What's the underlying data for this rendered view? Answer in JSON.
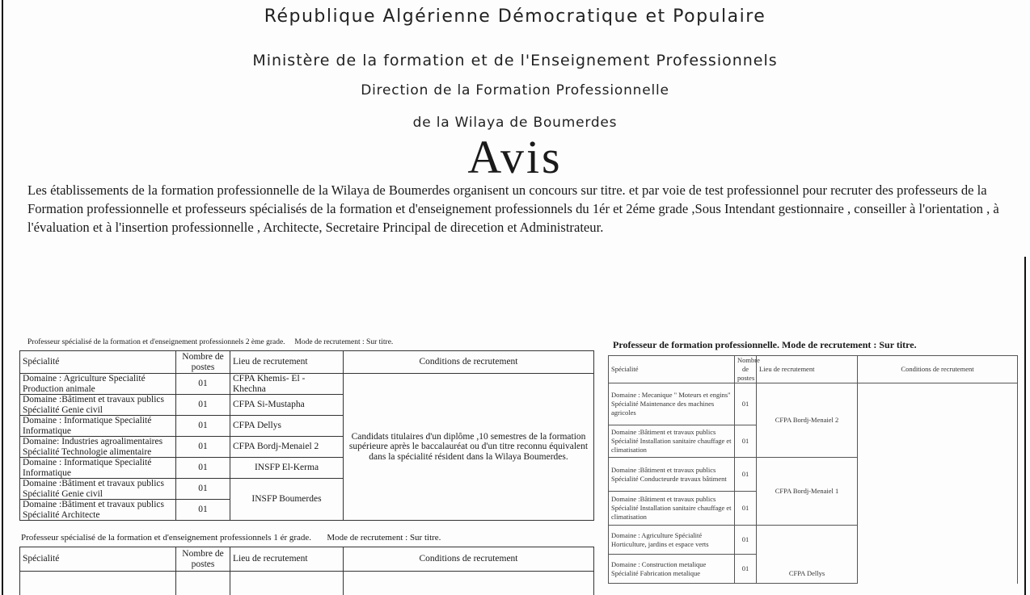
{
  "header": {
    "line1": "République Algérienne Démocratique et Populaire",
    "line2": "Ministère de la formation et de l'Enseignement Professionnels",
    "line3": "Direction de la Formation Professionnelle",
    "line4": "de la Wilaya de Boumerdes",
    "title": "Avis"
  },
  "intro": "Les établissements de la formation professionnelle de la Wilaya de Boumerdes organisent un concours sur titre. et par voie de test professionnel pour recruter des professeurs de la Formation professionnelle et professeurs spécialisés de la formation et d'enseignement professionnels du 1ér et 2éme grade ,Sous Intendant gestionnaire , conseiller à l'orientation , à l'évaluation et à l'insertion professionnelle , Architecte, Secretaire Principal de direcetion et Administrateur.",
  "columns": {
    "specialite": "Spécialité",
    "nombre": "Nombre de postes",
    "lieu": "Lieu de recrutement",
    "conditions": "Conditions de recrutement"
  },
  "table_2eme": {
    "caption": "Professeur spécialisé de la formation et d'enseignement professionnels 2 ème grade.",
    "mode": "Mode de recrutement : Sur titre.",
    "rows": [
      {
        "specialite": "Domaine : Agriculture Specialité Production animale",
        "nombre": "01",
        "lieu": "CFPA Khemis- El - Khechna"
      },
      {
        "specialite": "Domaine :Bâtiment et travaux publics Spécialité Genie civil",
        "nombre": "01",
        "lieu": "CFPA Si-Mustapha"
      },
      {
        "specialite": "Domaine : Informatique Specialité Informatique",
        "nombre": "01",
        "lieu": "CFPA Dellys"
      },
      {
        "specialite": "Domaine: Industries agroalimentaires Spécialité Technologie alimentaire",
        "nombre": "01",
        "lieu": "CFPA Bordj-Menaiel 2"
      },
      {
        "specialite": "Domaine : Informatique Specialité Informatique",
        "nombre": "01",
        "lieu": "INSFP El-Kerma"
      },
      {
        "specialite": "Domaine :Bâtiment et travaux publics Spécialité Genie civil",
        "nombre": "01",
        "lieu": "INSFP Boumerdes"
      },
      {
        "specialite": "Domaine :Bâtiment et travaux publics Spécialité Architecte",
        "nombre": "01"
      }
    ],
    "conditions": "Candidats titulaires d'un diplôme ,10 semestres de la formation supérieure après le baccalauréat ou d'un titre reconnu équivalent dans la spécialité résident dans la Wilaya Boumerdes."
  },
  "table_1er": {
    "caption": "Professeur spécialisé de la formation et d'enseignement professionnels 1 ér grade.",
    "mode": "Mode de recrutement : Sur titre."
  },
  "table_pfp": {
    "caption": "Professeur de formation professionnelle. Mode de recrutement : Sur titre.",
    "rows": [
      {
        "specialite": "Domaine : Mecanique \" Moteurs et engins\" Spécialité Maintenance des machines agricoles",
        "nombre": "01",
        "lieu": "CFPA Bordj-Menaiel 2"
      },
      {
        "specialite": "Domaine :Bâtiment et travaux publics Spécialité Installation sanitaire chauffage et climatisation",
        "nombre": "01"
      },
      {
        "specialite": "Domaine :Bâtiment et travaux publics Spécialité Conducteurde travaux bâtiment",
        "nombre": "01",
        "lieu": "CFPA Bordj-Menaiel 1"
      },
      {
        "specialite": "Domaine :Bâtiment et travaux publics Spécialité Installation sanitaire chauffage et climatisation",
        "nombre": "01"
      },
      {
        "specialite": "Domaine : Agriculture Spécialité Horticulture, jardins et espace verts",
        "nombre": "01",
        "lieu": "CFPA Dellys"
      },
      {
        "specialite": "Domaine : Construction metalique Spécialité Fabrication metalique",
        "nombre": "01"
      }
    ]
  }
}
